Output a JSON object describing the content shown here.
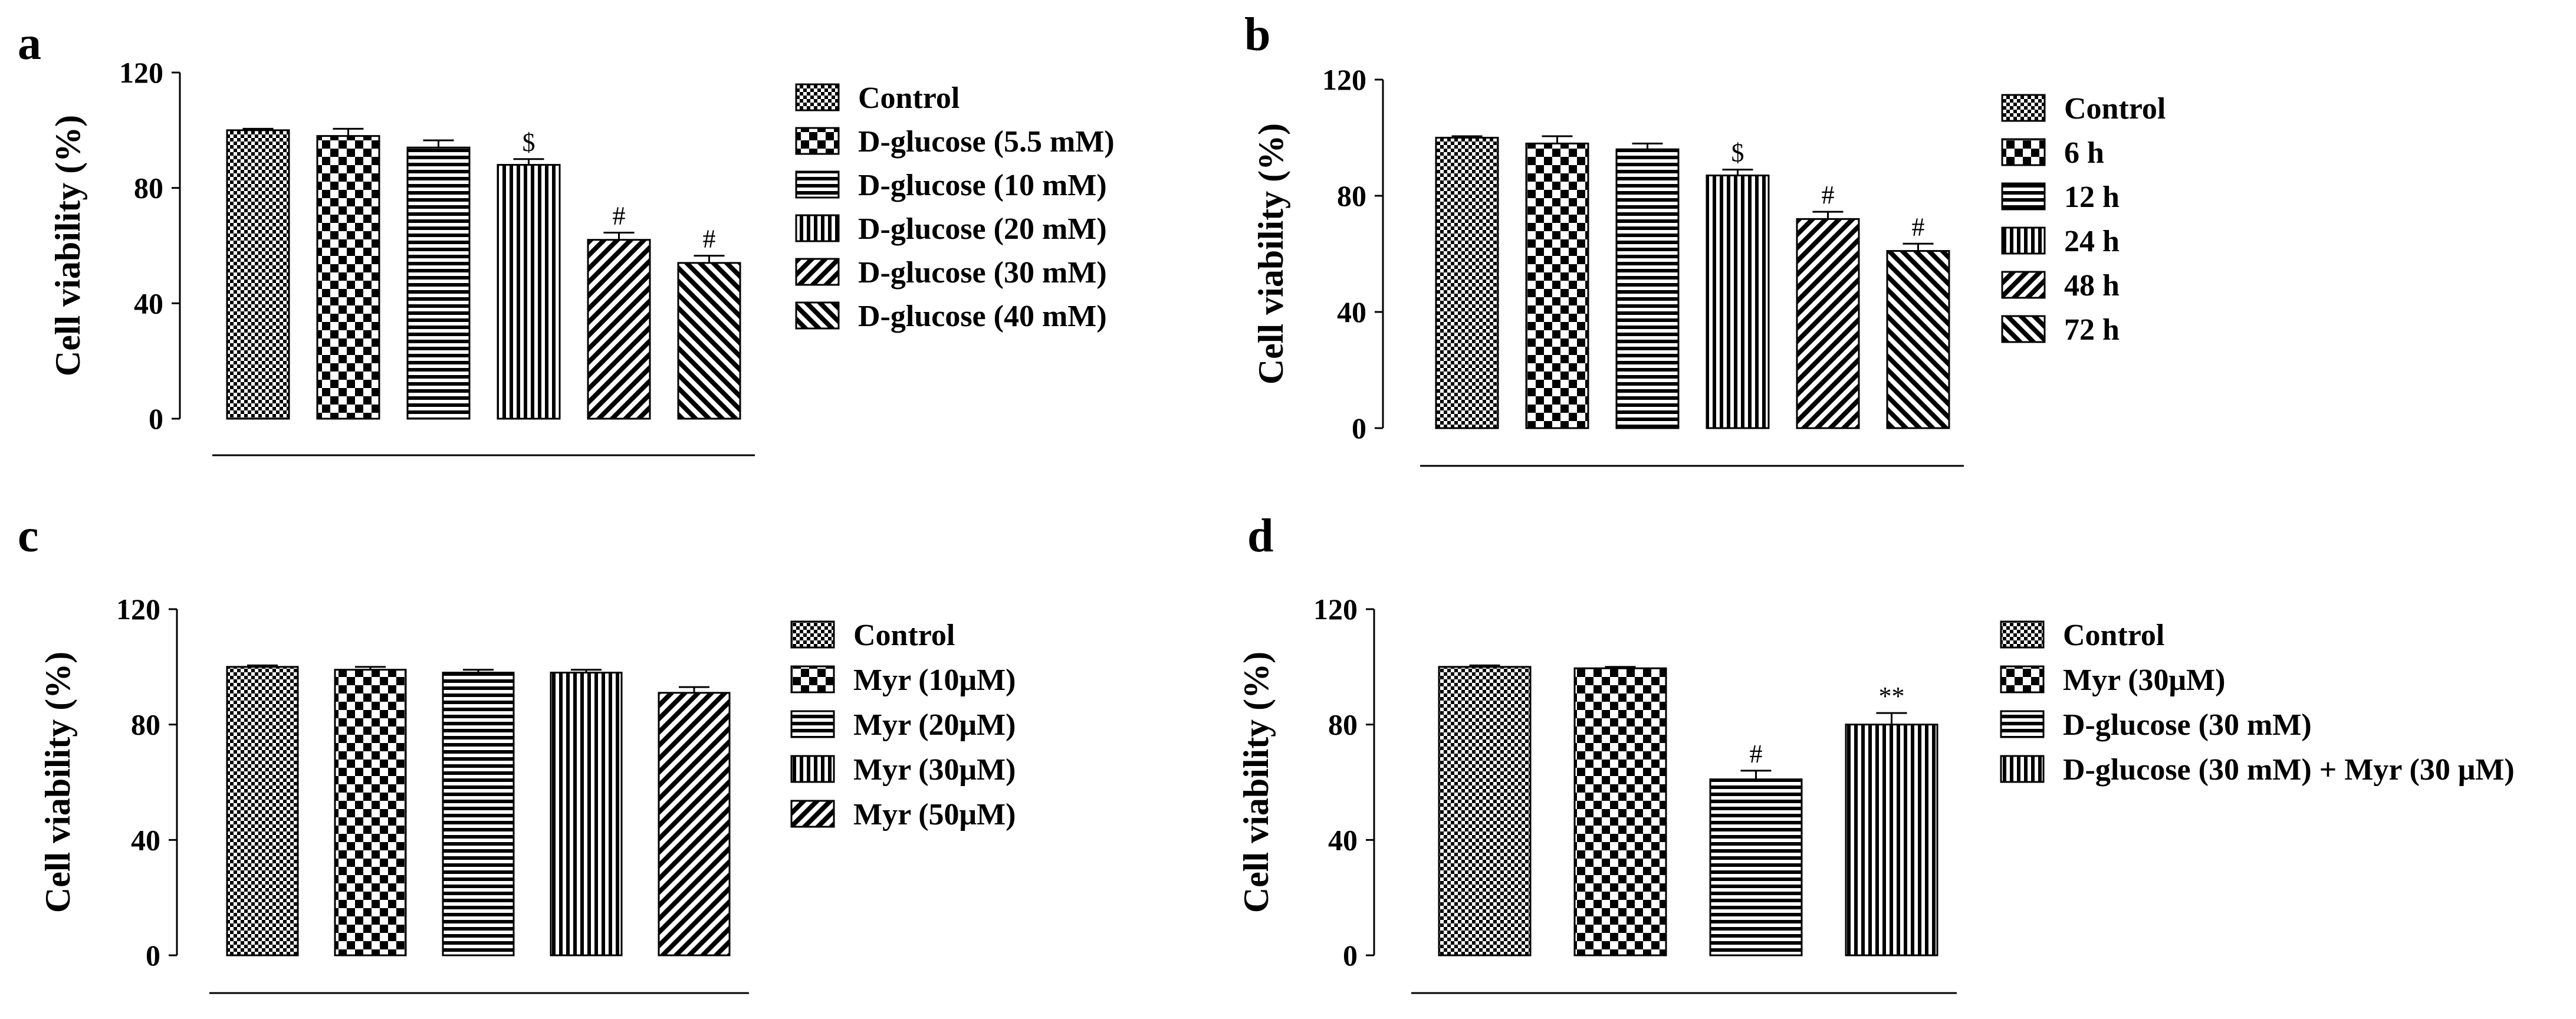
{
  "figure": {
    "panels": [
      "a",
      "b",
      "c",
      "d"
    ]
  },
  "chart_data": [
    {
      "panel": "a",
      "type": "bar",
      "title": "",
      "xlabel": "",
      "ylabel": "Cell viability (%)",
      "ylim": [
        0,
        120
      ],
      "yticks": [
        0,
        40,
        80,
        120
      ],
      "categories": [
        "Control",
        "D-glucose (5.5 mM)",
        "D-glucose (10 mM)",
        "D-glucose (20 mM)",
        "D-glucose (30 mM)",
        "D-glucose (40 mM)"
      ],
      "patterns": [
        "checker-fine",
        "checker-large",
        "horizontal",
        "vertical",
        "diagonal-up",
        "diagonal-down"
      ],
      "values": [
        100,
        98,
        94,
        88,
        62,
        54
      ],
      "errors": [
        0.5,
        2.5,
        2.5,
        2.0,
        2.5,
        2.5
      ],
      "annotations": [
        "",
        "",
        "",
        "$",
        "#",
        "#"
      ]
    },
    {
      "panel": "b",
      "type": "bar",
      "title": "",
      "xlabel": "",
      "ylabel": "Cell viability (%)",
      "ylim": [
        0,
        120
      ],
      "yticks": [
        0,
        40,
        80,
        120
      ],
      "categories": [
        "Control",
        "6 h",
        "12 h",
        "24 h",
        "48 h",
        "72 h"
      ],
      "patterns": [
        "checker-fine",
        "checker-large",
        "horizontal",
        "vertical",
        "diagonal-up",
        "diagonal-down"
      ],
      "values": [
        100,
        98,
        96,
        87,
        72,
        61
      ],
      "errors": [
        0.5,
        2.5,
        2.0,
        2.0,
        2.5,
        2.5
      ],
      "annotations": [
        "",
        "",
        "",
        "$",
        "#",
        "#"
      ]
    },
    {
      "panel": "c",
      "type": "bar",
      "title": "",
      "xlabel": "",
      "ylabel": "Cell viability (%)",
      "ylim": [
        0,
        120
      ],
      "yticks": [
        0,
        40,
        80,
        120
      ],
      "categories": [
        "Control",
        "Myr (10μM)",
        "Myr (20μM)",
        "Myr (30μM)",
        "Myr (50μM)"
      ],
      "patterns": [
        "checker-fine",
        "checker-large",
        "horizontal",
        "vertical",
        "diagonal-up"
      ],
      "values": [
        100,
        99,
        98,
        98,
        91
      ],
      "errors": [
        0.5,
        1.0,
        1.0,
        1.0,
        2.0
      ],
      "annotations": [
        "",
        "",
        "",
        "",
        ""
      ]
    },
    {
      "panel": "d",
      "type": "bar",
      "title": "",
      "xlabel": "",
      "ylabel": "Cell viability (%)",
      "ylim": [
        0,
        120
      ],
      "yticks": [
        0,
        40,
        80,
        120
      ],
      "categories": [
        "Control",
        "Myr (30μM)",
        "D-glucose (30 mM)",
        "D-glucose (30 mM) + Myr (30 μM)"
      ],
      "patterns": [
        "checker-fine",
        "checker-large",
        "horizontal",
        "vertical"
      ],
      "values": [
        100,
        99.5,
        61,
        80
      ],
      "errors": [
        0.5,
        0.5,
        3.0,
        4.0
      ],
      "annotations": [
        "",
        "",
        "#",
        "**"
      ]
    }
  ]
}
